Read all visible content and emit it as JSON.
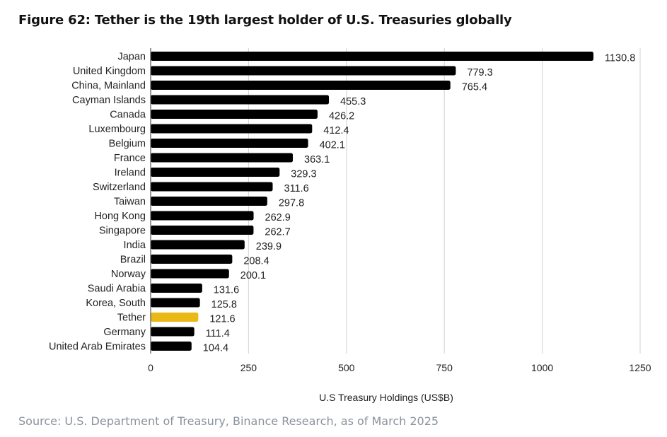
{
  "chart_data": {
    "type": "bar",
    "orientation": "horizontal",
    "title": "Figure 62: Tether is the 19th largest holder of U.S. Treasuries globally",
    "xlabel": "U.S Treasury Holdings (US$B)",
    "ylabel": "",
    "xlim": [
      0,
      1250
    ],
    "xticks": [
      "0",
      "250",
      "500",
      "750",
      "1000",
      "1250"
    ],
    "grid": true,
    "legend": "none",
    "categories": [
      "Japan",
      "United Kingdom",
      "China, Mainland",
      "Cayman Islands",
      "Canada",
      "Luxembourg",
      "Belgium",
      "France",
      "Ireland",
      "Switzerland",
      "Taiwan",
      "Hong Kong",
      "Singapore",
      "India",
      "Brazil",
      "Norway",
      "Saudi Arabia",
      "Korea, South",
      "Tether",
      "Germany",
      "United Arab Emirates"
    ],
    "values": [
      1130.8,
      779.3,
      765.4,
      455.3,
      426.2,
      412.4,
      402.1,
      363.1,
      329.3,
      311.6,
      297.8,
      262.9,
      262.7,
      239.9,
      208.4,
      200.1,
      131.6,
      125.8,
      121.6,
      111.4,
      104.4
    ],
    "value_labels": [
      "1130.8",
      "779.3",
      "765.4",
      "455.3",
      "426.2",
      "412.4",
      "402.1",
      "363.1",
      "329.3",
      "311.6",
      "297.8",
      "262.9",
      "262.7",
      "239.9",
      "208.4",
      "200.1",
      "131.6",
      "125.8",
      "121.6",
      "111.4",
      "104.4"
    ],
    "highlight": "Tether",
    "colors": {
      "bar": "#000000",
      "highlight": "#ebb916",
      "grid": "#d9d9d9",
      "axis": "#555555"
    },
    "source": "Source: U.S. Department of Treasury, Binance Research, as of March 2025"
  }
}
